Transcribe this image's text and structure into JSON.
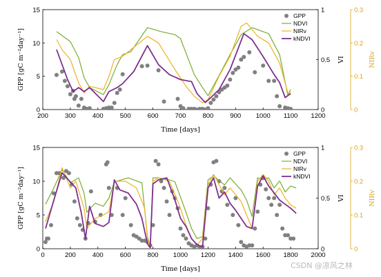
{
  "watermark": "CSDN @凉风之林",
  "chart_data": [
    {
      "type": "line",
      "xlabel": "Time [days]",
      "ylabel_left": "GPP [gC m⁻²day⁻¹]",
      "ylabel_right_vi": "VI",
      "ylabel_right_nirv": "NIRv",
      "xlim": [
        200,
        1200
      ],
      "xticks": [
        200,
        300,
        400,
        500,
        600,
        700,
        800,
        900,
        1000,
        1100,
        1200
      ],
      "ylim_left": [
        0,
        15
      ],
      "yticks_left": [
        0,
        5,
        10,
        15
      ],
      "ylim_vi": [
        0,
        1
      ],
      "yticks_vi": [
        0,
        0.5,
        1
      ],
      "yticklabels_vi": [
        "0",
        "0.5",
        "1"
      ],
      "ylim_nirv": [
        0,
        0.3
      ],
      "yticks_nirv": [
        0,
        0.1,
        0.2,
        0.3
      ],
      "yticklabels_nirv": [
        "0",
        "0.1",
        "0.2",
        "0.3"
      ],
      "legend": [
        "GPP",
        "NDVI",
        "NIRv",
        "kNDVI"
      ],
      "legend_position": "top-right",
      "colors": {
        "GPP": "#808080",
        "NDVI": "#77ac30",
        "NIRv": "#edb120",
        "kNDVI": "#7e2f8e"
      },
      "series": [
        {
          "name": "GPP",
          "kind": "scatter",
          "axis": "left",
          "x": [
            250,
            270,
            280,
            290,
            300,
            310,
            315,
            320,
            330,
            340,
            350,
            360,
            370,
            420,
            430,
            440,
            450,
            460,
            470,
            480,
            490,
            560,
            580,
            620,
            640,
            690,
            700,
            710,
            730,
            740,
            750,
            760,
            770,
            780,
            790,
            800,
            810,
            820,
            830,
            840,
            850,
            860,
            870,
            880,
            890,
            900,
            910,
            920,
            930,
            950,
            970,
            1000,
            1020,
            1040,
            1050,
            1060,
            1080,
            1090,
            1100
          ],
          "y": [
            5.2,
            5.7,
            4.3,
            3.5,
            2.3,
            2.8,
            1.6,
            2.0,
            0.6,
            1.6,
            0.3,
            0.1,
            0.2,
            0.1,
            0.2,
            0.3,
            0.3,
            1.0,
            2.5,
            3.0,
            5.3,
            6.5,
            6.6,
            5.9,
            1.2,
            1.6,
            0.5,
            0.2,
            0.1,
            0.1,
            0.1,
            0.0,
            0.1,
            0.1,
            0.0,
            0.2,
            1.0,
            1.5,
            2.0,
            2.6,
            3.0,
            3.3,
            3.6,
            4.5,
            5.5,
            6.0,
            6.3,
            7.5,
            7.9,
            8.6,
            5.6,
            6.6,
            4.3,
            4.3,
            2.0,
            0.5,
            0.3,
            0.2,
            0.1
          ]
        },
        {
          "name": "NDVI",
          "axis": "vi",
          "x": [
            250,
            300,
            330,
            350,
            370,
            420,
            440,
            470,
            490,
            520,
            580,
            630,
            680,
            700,
            750,
            780,
            800,
            840,
            880,
            920,
            960,
            1020,
            1060,
            1090,
            1100
          ],
          "y": [
            0.78,
            0.68,
            0.52,
            0.32,
            0.22,
            0.15,
            0.25,
            0.45,
            0.55,
            0.58,
            0.82,
            0.78,
            0.75,
            0.71,
            0.35,
            0.22,
            0.14,
            0.34,
            0.55,
            0.75,
            0.82,
            0.76,
            0.55,
            0.14,
            0.2
          ]
        },
        {
          "name": "NIRv",
          "axis": "nirv",
          "x": [
            250,
            270,
            300,
            330,
            350,
            370,
            420,
            440,
            460,
            490,
            520,
            580,
            620,
            680,
            720,
            750,
            780,
            800,
            840,
            880,
            920,
            940,
            980,
            1020,
            1060,
            1090,
            1100
          ],
          "y": [
            0.21,
            0.18,
            0.15,
            0.08,
            0.05,
            0.07,
            0.06,
            0.1,
            0.15,
            0.16,
            0.18,
            0.22,
            0.2,
            0.12,
            0.07,
            0.04,
            0.02,
            0.03,
            0.1,
            0.16,
            0.25,
            0.26,
            0.22,
            0.2,
            0.14,
            0.05,
            0.05
          ]
        },
        {
          "name": "kNDVI",
          "axis": "vi",
          "x": [
            250,
            290,
            310,
            330,
            350,
            370,
            420,
            440,
            470,
            490,
            530,
            580,
            620,
            660,
            700,
            740,
            760,
            790,
            810,
            840,
            880,
            930,
            960,
            1000,
            1040,
            1060,
            1080,
            1100
          ],
          "y": [
            0.6,
            0.3,
            0.18,
            0.22,
            0.18,
            0.22,
            0.08,
            0.18,
            0.22,
            0.26,
            0.38,
            0.64,
            0.45,
            0.35,
            0.3,
            0.28,
            0.16,
            0.07,
            0.12,
            0.2,
            0.4,
            0.76,
            0.7,
            0.53,
            0.35,
            0.27,
            0.12,
            0.16
          ]
        }
      ]
    },
    {
      "type": "line",
      "xlabel": "Time [days]",
      "ylabel_left": "GPP [gC m⁻²day⁻¹]",
      "ylabel_right_vi": "VI",
      "ylabel_right_nirv": "NIRv",
      "xlim": [
        0,
        2000
      ],
      "xticks": [
        0,
        200,
        400,
        600,
        800,
        1000,
        1200,
        1400,
        1600,
        1800,
        2000
      ],
      "ylim_left": [
        0,
        15
      ],
      "yticks_left": [
        0,
        5,
        10,
        15
      ],
      "ylim_vi": [
        0,
        1
      ],
      "yticks_vi": [
        0,
        0.5,
        1
      ],
      "yticklabels_vi": [
        "0",
        "0.5",
        "1"
      ],
      "ylim_nirv": [
        0,
        0.3
      ],
      "yticks_nirv": [
        0,
        0.1,
        0.2,
        0.3
      ],
      "yticklabels_nirv": [
        "0",
        "0.1",
        "0.2",
        "0.3"
      ],
      "legend": [
        "GPP",
        "NDVI",
        "NIRv",
        "kNDVI"
      ],
      "legend_position": "top-right",
      "colors": {
        "GPP": "#808080",
        "NDVI": "#77ac30",
        "NIRv": "#edb120",
        "kNDVI": "#7e2f8e"
      },
      "series": [
        {
          "name": "GPP",
          "kind": "scatter",
          "axis": "left",
          "x": [
            20,
            30,
            40,
            60,
            80,
            100,
            120,
            150,
            170,
            190,
            210,
            230,
            250,
            270,
            290,
            310,
            330,
            350,
            380,
            420,
            460,
            470,
            480,
            500,
            540,
            580,
            600,
            640,
            660,
            680,
            700,
            720,
            740,
            760,
            780,
            800,
            820,
            840,
            860,
            880,
            900,
            920,
            940,
            960,
            980,
            1000,
            1020,
            1040,
            1060,
            1080,
            1100,
            1120,
            1140,
            1160,
            1180,
            1200,
            1220,
            1240,
            1260,
            1280,
            1300,
            1320,
            1340,
            1380,
            1400,
            1420,
            1440,
            1460,
            1480,
            1500,
            1520,
            1540,
            1560,
            1580,
            1600,
            1620,
            1640,
            1660,
            1680,
            1700,
            1720,
            1740,
            1760,
            1780,
            1800,
            1820
          ],
          "y": [
            1.0,
            1.5,
            1.5,
            3.5,
            8.2,
            11.2,
            11.2,
            10.5,
            11.5,
            11.2,
            9.5,
            7.0,
            4.5,
            3.5,
            2.8,
            1.5,
            3.8,
            8.5,
            4.0,
            5.0,
            12.5,
            12.8,
            9.0,
            5.0,
            9.0,
            5.0,
            7.5,
            3.5,
            2.0,
            1.8,
            1.5,
            1.2,
            1.2,
            1.0,
            0.5,
            3.5,
            13.0,
            12.5,
            10.0,
            9.0,
            7.0,
            5.0,
            8.5,
            7.5,
            6.0,
            3.0,
            2.0,
            1.5,
            0.8,
            0.5,
            0.3,
            0.5,
            0.2,
            0.3,
            1.5,
            6.0,
            9.5,
            12.8,
            13.0,
            10.0,
            8.5,
            9.0,
            6.5,
            5.0,
            7.5,
            3.5,
            1.0,
            0.5,
            0.3,
            0.5,
            0.5,
            3.0,
            5.5,
            9.5,
            10.5,
            8.8,
            7.5,
            6.5,
            7.5,
            5.0,
            6.5,
            3.0,
            2.0,
            2.0,
            1.5,
            1.5
          ]
        },
        {
          "name": "NDVI",
          "axis": "vi",
          "x": [
            20,
            80,
            140,
            200,
            260,
            300,
            320,
            380,
            440,
            480,
            520,
            620,
            720,
            760,
            780,
            800,
            840,
            920,
            960,
            1040,
            1080,
            1120,
            1160,
            1200,
            1240,
            1320,
            1360,
            1440,
            1480,
            1520,
            1560,
            1600,
            1640,
            1680,
            1720,
            1760,
            1800,
            1840
          ],
          "y": [
            0.44,
            0.6,
            0.78,
            0.65,
            0.7,
            0.55,
            0.36,
            0.45,
            0.42,
            0.5,
            0.66,
            0.7,
            0.65,
            0.12,
            0.02,
            0.7,
            0.7,
            0.68,
            0.66,
            0.36,
            0.2,
            0.1,
            0.12,
            0.68,
            0.72,
            0.63,
            0.7,
            0.58,
            0.48,
            0.32,
            0.7,
            0.68,
            0.7,
            0.6,
            0.67,
            0.56,
            0.62,
            0.6
          ]
        },
        {
          "name": "NIRv",
          "axis": "nirv",
          "x": [
            20,
            80,
            140,
            200,
            240,
            300,
            320,
            380,
            440,
            480,
            520,
            600,
            680,
            740,
            760,
            780,
            800,
            840,
            920,
            960,
            1000,
            1040,
            1080,
            1120,
            1160,
            1200,
            1240,
            1320,
            1360,
            1440,
            1480,
            1520,
            1560,
            1600,
            1640,
            1680,
            1720,
            1760,
            1800,
            1840
          ],
          "y": [
            0.08,
            0.14,
            0.24,
            0.18,
            0.2,
            0.12,
            0.06,
            0.09,
            0.1,
            0.11,
            0.2,
            0.2,
            0.18,
            0.12,
            0.03,
            0.0,
            0.2,
            0.21,
            0.2,
            0.16,
            0.12,
            0.07,
            0.03,
            0.01,
            0.03,
            0.19,
            0.22,
            0.16,
            0.18,
            0.14,
            0.1,
            0.06,
            0.2,
            0.22,
            0.2,
            0.16,
            0.18,
            0.15,
            0.13,
            0.12
          ]
        },
        {
          "name": "kNDVI",
          "axis": "vi",
          "x": [
            20,
            80,
            140,
            200,
            240,
            280,
            310,
            340,
            380,
            440,
            480,
            520,
            560,
            620,
            680,
            720,
            760,
            780,
            800,
            840,
            900,
            960,
            1000,
            1040,
            1080,
            1120,
            1160,
            1200,
            1240,
            1280,
            1320,
            1360,
            1400,
            1440,
            1480,
            1520,
            1560,
            1600,
            1640,
            1680,
            1720,
            1760,
            1800,
            1840
          ],
          "y": [
            0.2,
            0.48,
            0.75,
            0.66,
            0.6,
            0.35,
            0.1,
            0.42,
            0.25,
            0.22,
            0.26,
            0.68,
            0.58,
            0.55,
            0.44,
            0.3,
            0.05,
            0.01,
            0.64,
            0.68,
            0.7,
            0.48,
            0.3,
            0.22,
            0.1,
            0.04,
            0.02,
            0.6,
            0.7,
            0.5,
            0.56,
            0.45,
            0.38,
            0.3,
            0.22,
            0.2,
            0.62,
            0.72,
            0.62,
            0.55,
            0.48,
            0.44,
            0.4,
            0.35
          ]
        }
      ]
    }
  ]
}
